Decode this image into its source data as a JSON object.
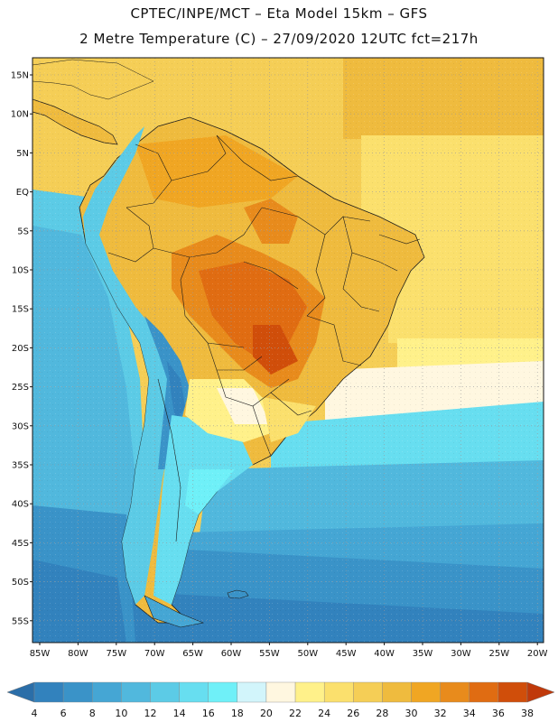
{
  "title": {
    "line1": "CPTEC/INPE/MCT –  Eta Model 15km – GFS",
    "line2": "2 Metre Temperature (C) – 27/09/2020 12UTC fct=217h"
  },
  "lat_ticks": [
    "15N",
    "10N",
    "5N",
    "EQ",
    "5S",
    "10S",
    "15S",
    "20S",
    "25S",
    "30S",
    "35S",
    "40S",
    "45S",
    "50S",
    "55S"
  ],
  "lon_ticks": [
    "85W",
    "80W",
    "75W",
    "70W",
    "65W",
    "60W",
    "55W",
    "50W",
    "45W",
    "40W",
    "35W",
    "30W",
    "25W",
    "20W"
  ],
  "colorbar": {
    "labels": [
      "4",
      "6",
      "8",
      "10",
      "12",
      "14",
      "16",
      "18",
      "20",
      "22",
      "24",
      "26",
      "28",
      "30",
      "32",
      "34",
      "36",
      "38"
    ],
    "colors": [
      "#2b6ea8",
      "#3282bd",
      "#3a93c8",
      "#45a6d4",
      "#51b8dd",
      "#5ccbe6",
      "#67def0",
      "#6ff0f8",
      "#d2f5fb",
      "#fff7e0",
      "#fff18a",
      "#fbe06d",
      "#f5ce56",
      "#efbb3e",
      "#f0a623",
      "#e88b1c",
      "#e06c12",
      "#d04e0a",
      "#c0390a"
    ]
  },
  "colors": {
    "ocean_cold": "#2b6ea8",
    "ocean_cool": "#45a6d4",
    "ocean_mild": "#67def0",
    "warm": "#f5ce56",
    "hot": "#e88b1c",
    "boundary": "#1a1a1a"
  }
}
